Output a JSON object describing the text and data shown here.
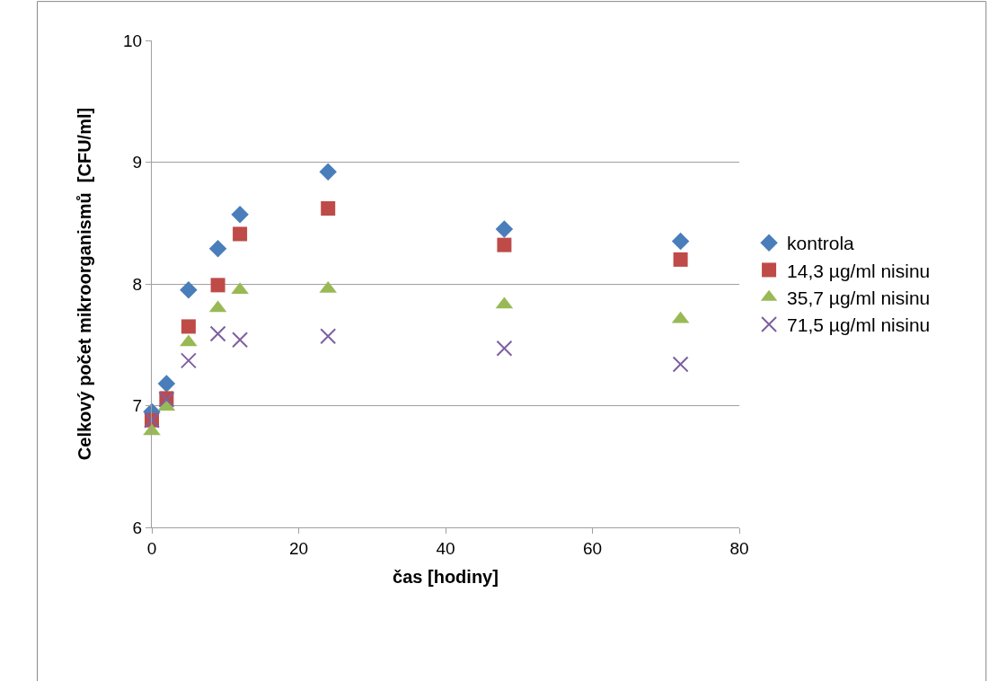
{
  "chart_data": {
    "type": "scatter",
    "xlabel": "čas [hodiny]",
    "ylabel": "Celkový počet mikroorganismů  [CFU/ml]",
    "x": [
      0,
      2,
      5,
      9,
      12,
      24,
      48,
      72
    ],
    "series": [
      {
        "name": "kontrola",
        "color": "#4a7ebb",
        "marker": "diamond",
        "values": [
          6.95,
          7.18,
          7.95,
          8.29,
          8.57,
          8.92,
          8.45,
          8.35
        ]
      },
      {
        "name": "14,3 µg/ml nisinu",
        "color": "#be4b48",
        "marker": "square",
        "values": [
          6.88,
          7.06,
          7.65,
          7.99,
          8.41,
          8.62,
          8.32,
          8.2
        ]
      },
      {
        "name": "35,7 µg/ml nisinu",
        "color": "#98b954",
        "marker": "triangle",
        "values": [
          6.79,
          6.99,
          7.52,
          7.8,
          7.95,
          7.96,
          7.83,
          7.71
        ]
      },
      {
        "name": "71,5 µg/ml nisinu",
        "color": "#7d60a0",
        "marker": "cross",
        "values": [
          6.88,
          7.05,
          7.37,
          7.59,
          7.54,
          7.57,
          7.47,
          7.34
        ]
      }
    ],
    "xlim": [
      0,
      80
    ],
    "xticks": [
      0,
      20,
      40,
      60,
      80
    ],
    "ylim": [
      6,
      10
    ],
    "yticks": [
      6,
      7,
      8,
      9,
      10
    ],
    "grid": "y",
    "legend": "right"
  }
}
